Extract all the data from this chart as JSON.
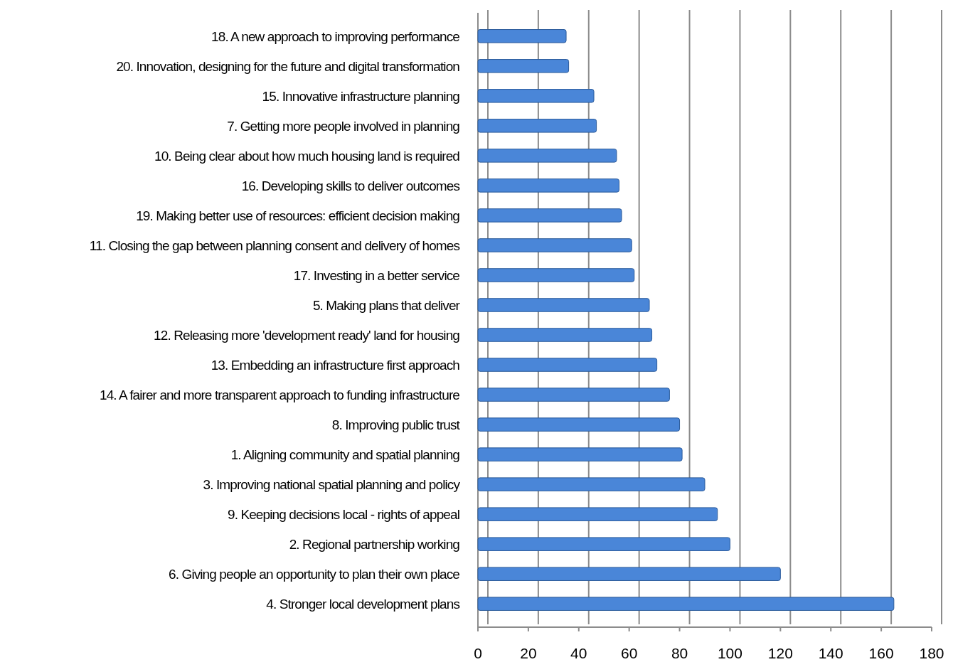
{
  "chart_data": {
    "type": "bar",
    "orientation": "horizontal",
    "categories": [
      "18. A new approach to improving performance",
      "20. Innovation, designing for the future and digital transformation",
      "15. Innovative infrastructure planning",
      "7. Getting more people involved in planning",
      "10. Being clear about how much housing land is required",
      "16. Developing skills to deliver outcomes",
      "19. Making better use of resources: efficient decision making",
      "11. Closing the gap between planning consent and delivery of homes",
      "17. Investing in a better service",
      "5. Making plans that deliver",
      "12. Releasing more 'development ready' land for housing",
      "13. Embedding an infrastructure first approach",
      "14. A fairer and more transparent approach to funding infrastructure",
      "8. Improving public trust",
      "1. Aligning community and spatial planning",
      "3. Improving national spatial planning and policy",
      "9. Keeping decisions local - rights of appeal",
      "2. Regional partnership working",
      "6. Giving people an opportunity to plan their own place",
      "4. Stronger local development plans"
    ],
    "values": [
      35,
      36,
      46,
      47,
      55,
      56,
      57,
      61,
      62,
      68,
      69,
      71,
      76,
      80,
      81,
      90,
      95,
      100,
      120,
      165
    ],
    "color": "#4a86d8",
    "xlim": [
      0,
      180
    ],
    "xticks": [
      0,
      20,
      40,
      60,
      80,
      100,
      120,
      140,
      160,
      180
    ],
    "grid": "x"
  }
}
